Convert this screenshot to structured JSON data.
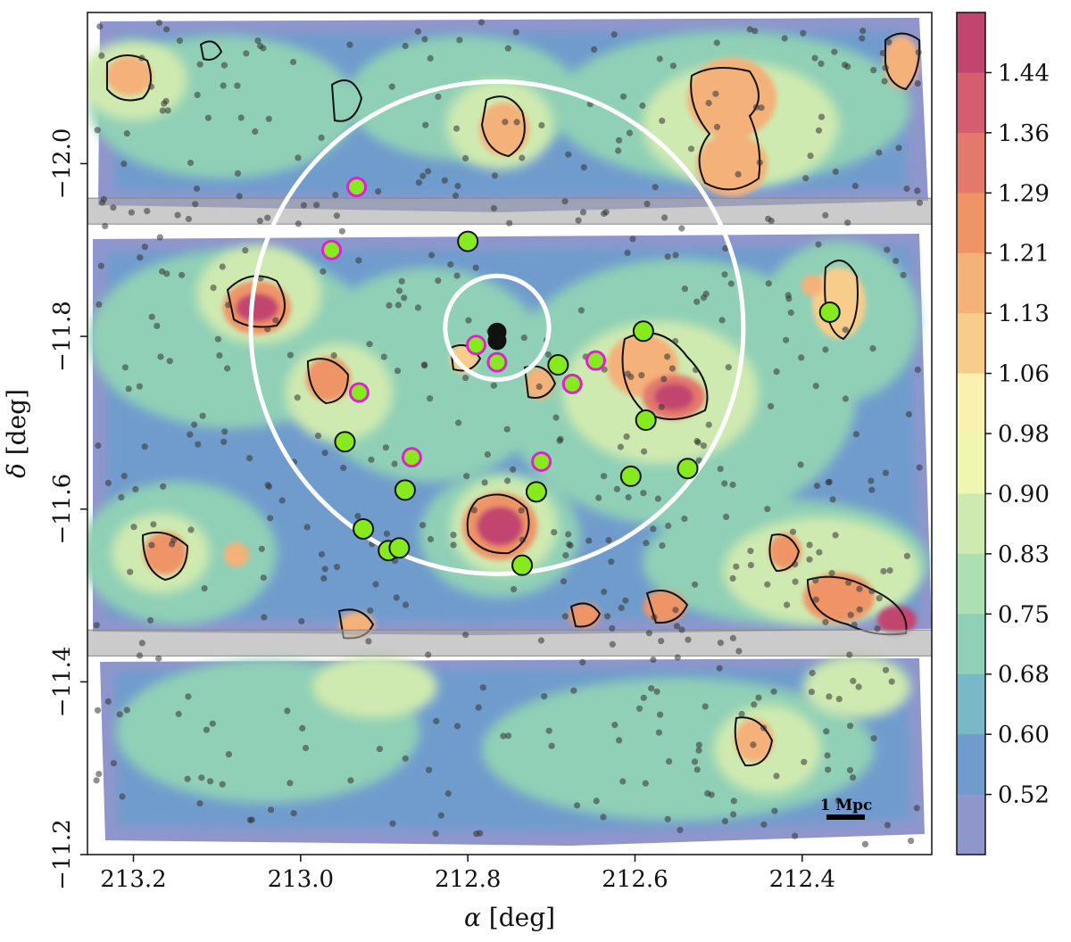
{
  "chart_data": {
    "type": "scatter",
    "xlabel_symbol": "α",
    "xlabel_unit": " [deg]",
    "ylabel_symbol": "δ",
    "ylabel_unit": " [deg]",
    "xlim": [
      213.255,
      212.245
    ],
    "ylim": [
      -12.175,
      -11.2
    ],
    "x_ticks": [
      213.2,
      213.0,
      212.8,
      212.6,
      212.4
    ],
    "x_tick_labels": [
      "213.2",
      "213.0",
      "212.8",
      "212.6",
      "212.4"
    ],
    "y_ticks": [
      -11.2,
      -11.4,
      -11.6,
      -11.8,
      -12.0
    ],
    "y_tick_labels": [
      "−11.2",
      "−11.4",
      "−11.6",
      "−11.8",
      "−12.0"
    ],
    "colorbar": {
      "ticks": [
        "1.44",
        "1.36",
        "1.29",
        "1.21",
        "1.13",
        "1.06",
        "0.98",
        "0.90",
        "0.83",
        "0.75",
        "0.68",
        "0.60",
        "0.52"
      ],
      "colors": [
        "#c2456f",
        "#d45d6f",
        "#e3786c",
        "#ef9466",
        "#f4b179",
        "#f8cd8c",
        "#faf0b0",
        "#eef6b0",
        "#cfeab0",
        "#ace0b2",
        "#90d0b6",
        "#79b8c6",
        "#6f9ccd",
        "#8f96cc"
      ]
    },
    "masked_bands": [
      [
        -11.43,
        -11.46
      ],
      [
        -11.93,
        -11.96
      ]
    ],
    "scale_bar_label": "1 Mpc",
    "circles": [
      {
        "ra": 212.765,
        "dec": -11.81,
        "radius_deg": 0.285,
        "color": "#ffffff"
      },
      {
        "ra": 212.765,
        "dec": -11.81,
        "radius_deg": 0.06,
        "color": "#ffffff"
      }
    ],
    "series": [
      {
        "marker": "green-filled",
        "fill": "#86ea1f",
        "edge": "#111111",
        "points": [
          [
            212.735,
            -11.535
          ],
          [
            212.895,
            -11.552
          ],
          [
            212.882,
            -11.555
          ],
          [
            212.925,
            -11.577
          ],
          [
            212.875,
            -11.622
          ],
          [
            212.718,
            -11.62
          ],
          [
            212.605,
            -11.638
          ],
          [
            212.537,
            -11.647
          ],
          [
            212.947,
            -11.678
          ],
          [
            212.587,
            -11.703
          ],
          [
            212.692,
            -11.767
          ],
          [
            212.59,
            -11.806
          ],
          [
            212.367,
            -11.828
          ],
          [
            212.8,
            -11.91
          ]
        ]
      },
      {
        "marker": "magenta-ring",
        "fill": "#86ea1f",
        "edge": "#e020d0",
        "points": [
          [
            212.712,
            -11.655
          ],
          [
            212.867,
            -11.66
          ],
          [
            212.93,
            -11.735
          ],
          [
            212.675,
            -11.745
          ],
          [
            212.647,
            -11.772
          ],
          [
            212.765,
            -11.77
          ],
          [
            212.79,
            -11.79
          ],
          [
            212.963,
            -11.9
          ],
          [
            212.933,
            -11.973
          ]
        ]
      },
      {
        "marker": "bcg-black",
        "fill": "#111111",
        "edge": "#111111",
        "points": [
          [
            212.765,
            -11.795
          ],
          [
            212.765,
            -11.805
          ]
        ]
      }
    ]
  }
}
